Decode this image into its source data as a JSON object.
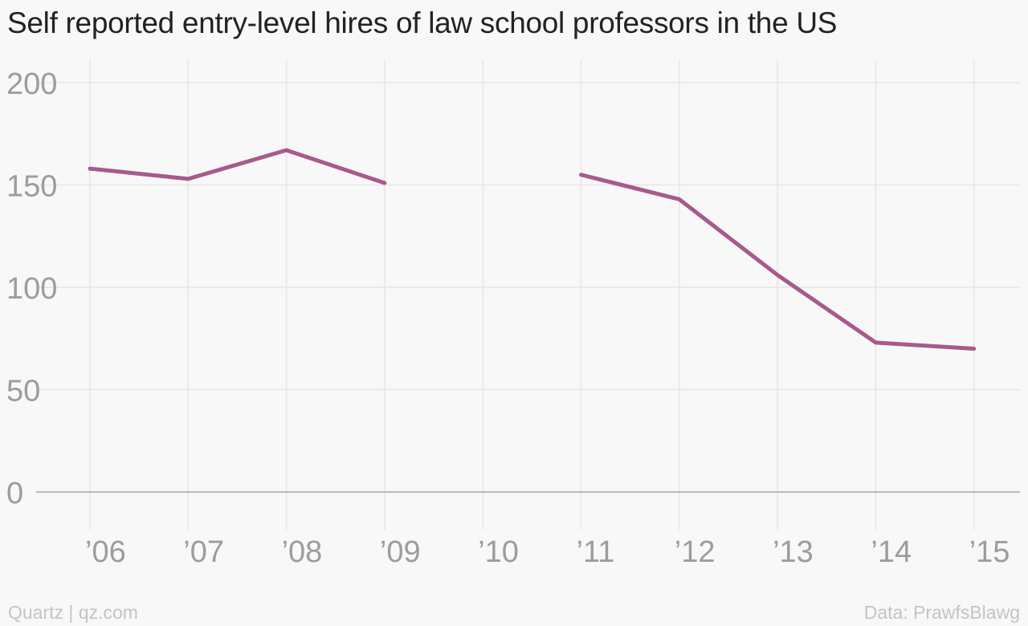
{
  "title": "Self reported entry-level hires of law school professors in the US",
  "footer": {
    "credit": "Quartz | qz.com",
    "source": "Data: PrawfsBlawg"
  },
  "colors": {
    "line": "#a85a8c",
    "grid": "#e6e6e6",
    "baseline": "#a6a6a6",
    "tick_text": "#9c9c9c",
    "background": "#f8f8f8"
  },
  "chart_data": {
    "type": "line",
    "x": [
      "’06",
      "’07",
      "’08",
      "’09",
      "’10",
      "’11",
      "’12",
      "’13",
      "’14",
      "’15"
    ],
    "series": [
      {
        "values": [
          158,
          153,
          167,
          151,
          null,
          155,
          143,
          106,
          73,
          70
        ]
      }
    ],
    "ylim": [
      0,
      200
    ],
    "yticks": [
      0,
      50,
      100,
      150,
      200
    ],
    "grid": true,
    "legend": "none"
  }
}
